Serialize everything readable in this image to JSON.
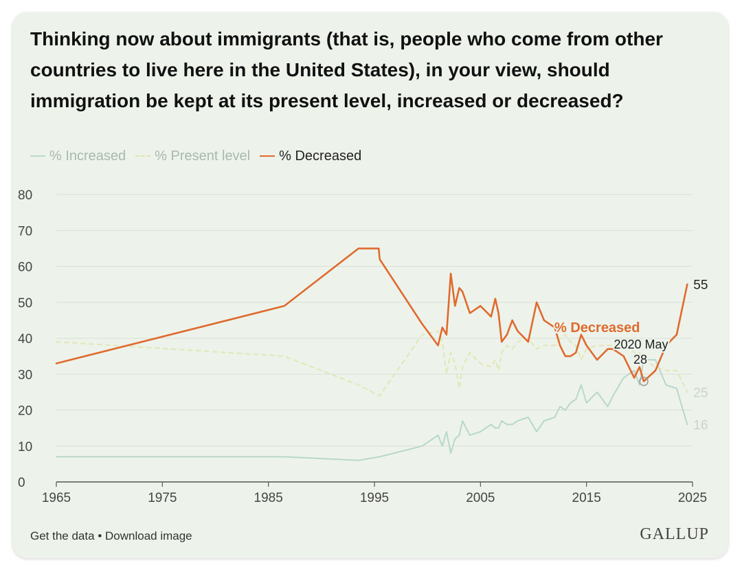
{
  "footer": {
    "get_data": "Get the data",
    "separator": "•",
    "download": "Download image",
    "brand": "GALLUP"
  },
  "colors": {
    "background": "#edf3ea",
    "increased": "#b7d7cb",
    "present": "#e2e6b6",
    "decreased": "#e06a2e",
    "grid": "#d9ded6",
    "axis": "#555555",
    "tick_text": "#444444"
  },
  "chart_data": {
    "type": "line",
    "title": "Thinking now about immigrants (that is, people who come from other countries to live here in the United States), in your view, should immigration be kept at its present level, increased or decreased?",
    "xlabel": "",
    "ylabel": "",
    "xlim": [
      1965,
      2025
    ],
    "ylim": [
      0,
      80
    ],
    "x_ticks": [
      "1965",
      "1975",
      "1985",
      "1995",
      "2005",
      "2015",
      "2025"
    ],
    "y_ticks": [
      "0",
      "10",
      "20",
      "30",
      "40",
      "50",
      "60",
      "70",
      "80"
    ],
    "grid": true,
    "legend_position": "top-left",
    "series": [
      {
        "name": "% Increased",
        "style": "solid",
        "color": "#b7d7cb",
        "x": [
          1965,
          1986.5,
          1993.5,
          1995.5,
          1999.5,
          2001.0,
          2001.4,
          2001.8,
          2002.2,
          2002.6,
          2003.0,
          2003.3,
          2004.0,
          2005.0,
          2006.0,
          2006.4,
          2006.7,
          2007.0,
          2007.5,
          2008.0,
          2008.5,
          2009.5,
          2010.3,
          2011.0,
          2012.0,
          2012.5,
          2013.0,
          2013.5,
          2014.0,
          2014.5,
          2015.0,
          2016.0,
          2017.0,
          2017.5,
          2018.5,
          2019.5,
          2020.0,
          2020.4,
          2021.5,
          2022.5,
          2023.5,
          2024.5
        ],
        "values": [
          7,
          7,
          6,
          7,
          10,
          13,
          10,
          14,
          8,
          12,
          13,
          17,
          13,
          14,
          16,
          15,
          15,
          17,
          16,
          16,
          17,
          18,
          14,
          17,
          18,
          21,
          20,
          22,
          23,
          27,
          22,
          25,
          21,
          24,
          29,
          31,
          27,
          34,
          34,
          27,
          26,
          16
        ],
        "end_label": "16"
      },
      {
        "name": "% Present level",
        "style": "dashed",
        "color": "#e2e6b6",
        "x": [
          1965,
          1986.5,
          1993.5,
          1995.5,
          1999.5,
          2001.0,
          2001.4,
          2001.8,
          2002.2,
          2002.6,
          2003.0,
          2003.3,
          2004.0,
          2005.0,
          2006.0,
          2006.4,
          2006.7,
          2007.0,
          2007.5,
          2008.0,
          2008.5,
          2009.5,
          2010.3,
          2011.0,
          2012.0,
          2012.5,
          2013.0,
          2013.5,
          2014.0,
          2014.5,
          2015.0,
          2016.0,
          2017.0,
          2017.5,
          2018.5,
          2019.5,
          2020.0,
          2020.4,
          2021.5,
          2022.5,
          2023.5,
          2024.5
        ],
        "values": [
          39,
          35,
          27,
          24,
          41,
          42,
          39,
          30,
          36,
          33,
          26,
          32,
          36,
          33,
          32,
          34,
          31,
          36,
          38,
          37,
          39,
          40,
          37,
          38,
          38,
          40,
          41,
          39,
          38,
          34,
          37,
          38,
          38,
          38,
          40,
          36,
          36,
          34,
          32,
          31,
          31,
          25
        ],
        "end_label": "25"
      },
      {
        "name": "% Decreased",
        "style": "solid",
        "color": "#e06a2e",
        "x": [
          1965,
          1986.5,
          1993.5,
          1995.4,
          1995.5,
          1999.5,
          2001.0,
          2001.4,
          2001.8,
          2002.2,
          2002.6,
          2003.0,
          2003.3,
          2004.0,
          2005.0,
          2006.0,
          2006.4,
          2006.7,
          2007.0,
          2007.5,
          2008.0,
          2008.5,
          2009.5,
          2010.3,
          2011.0,
          2012.0,
          2012.5,
          2013.0,
          2013.5,
          2014.0,
          2014.5,
          2015.0,
          2016.0,
          2017.0,
          2017.5,
          2018.5,
          2019.5,
          2020.0,
          2020.4,
          2021.5,
          2022.5,
          2023.5,
          2024.5
        ],
        "values": [
          33,
          49,
          65,
          65,
          62,
          44,
          38,
          43,
          41,
          58,
          49,
          54,
          53,
          47,
          49,
          46,
          51,
          47,
          39,
          41,
          45,
          42,
          39,
          50,
          45,
          43,
          38,
          35,
          35,
          36,
          41,
          38,
          34,
          37,
          37,
          35,
          29,
          32,
          28,
          31,
          38,
          41,
          55
        ],
        "end_label": "55"
      }
    ],
    "annotations": {
      "series_label": "% Decreased",
      "highlight_date": "2020 May",
      "highlight_value": "28",
      "highlight_x": 2020.4,
      "highlight_y": 28
    }
  }
}
